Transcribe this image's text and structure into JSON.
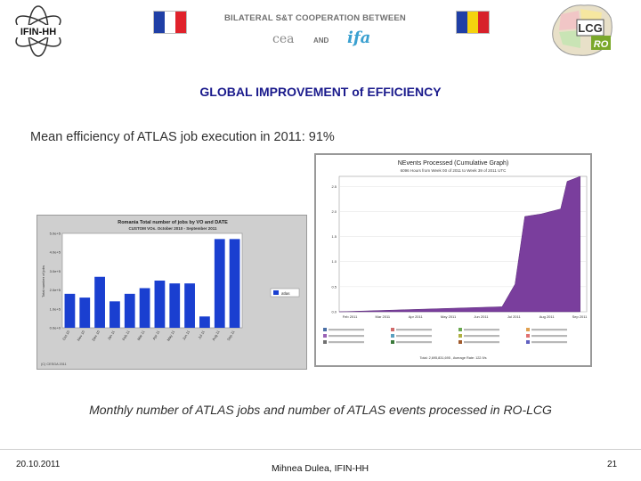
{
  "header": {
    "left_logo_text": "IFIN-HH",
    "title": "BILATERAL S&T COOPERATION BETWEEN",
    "partner1": "cea",
    "and": "AND",
    "partner2": "ifa",
    "right_logo_text1": "LCG",
    "right_logo_text2": "RO",
    "flag_fr_colors": [
      "#1f3fa6",
      "#ffffff",
      "#e0222b"
    ],
    "flag_ro_colors": [
      "#1f3fa6",
      "#f4d20e",
      "#d7212b"
    ]
  },
  "slide": {
    "title": "GLOBAL IMPROVEMENT of EFFICIENCY",
    "subtitle": "Mean efficiency of ATLAS job execution in 2011: 91%",
    "caption": "Monthly number of ATLAS jobs and number of ATLAS events processed in RO-LCG"
  },
  "footer": {
    "date": "20.10.2011",
    "author": "Mihnea Dulea, IFIN-HH",
    "page": "21"
  },
  "chart_data": [
    {
      "type": "bar",
      "title": "Romania Total number of jobs by VO and DATE",
      "subtitle": "CUSTOM VOs. October 2010 - September 2011",
      "ylabel": "Total number of jobs",
      "legend": "atlas",
      "categories": [
        "Oct 10",
        "Nov 10",
        "Dec 10",
        "Jan 11",
        "Feb 11",
        "Mar 11",
        "Apr 11",
        "May 11",
        "Jun 11",
        "Jul 11",
        "Aug 11",
        "Sep 11"
      ],
      "yticks": [
        "0.0e+0",
        "1.0e+5",
        "2.0e+5",
        "3.0e+5",
        "4.0e+5",
        "5.0e+5"
      ],
      "ylim": [
        0,
        500000
      ],
      "values": [
        180000,
        160000,
        270000,
        140000,
        180000,
        210000,
        250000,
        235000,
        235000,
        60000,
        470000,
        470000
      ],
      "bar_color": "#1a3fd0",
      "footer_note": "(C) CESGA 2011"
    },
    {
      "type": "area",
      "title": "NEvents Processed (Cumulative Graph)",
      "subtitle": "6096 Hours from Week 00 of 2011 to Week 39 of 2011 UTC",
      "ylabel": "",
      "x_ticks": [
        "Feb 2011",
        "Mar 2011",
        "Apr 2011",
        "May 2011",
        "Jun 2011",
        "Jul 2011",
        "Aug 2011",
        "Sep 2011"
      ],
      "y_ticks": [
        "0.0",
        "0.5",
        "1.0",
        "1.5",
        "2.0",
        "2.5"
      ],
      "ylim": [
        0,
        2.7
      ],
      "x": [
        0,
        1,
        2,
        3,
        4,
        5,
        5.4,
        5.7,
        6.2,
        6.8,
        7.0,
        7.2,
        7.4
      ],
      "values": [
        0,
        0.02,
        0.04,
        0.06,
        0.08,
        0.1,
        0.55,
        1.9,
        1.95,
        2.05,
        2.6,
        2.65,
        2.7
      ],
      "area_color": "#7a3e9d",
      "legend_colors": [
        "#4a6fa5",
        "#d06a6a",
        "#6aa84f",
        "#e0a050",
        "#9a62b5",
        "#5aa0c0",
        "#b0b040",
        "#e07070",
        "#707070",
        "#3a7a3a",
        "#a05a2c",
        "#6060c0"
      ],
      "total_note": "Total: 2,695,831,695 , Average Rate: 122.9/s"
    }
  ]
}
